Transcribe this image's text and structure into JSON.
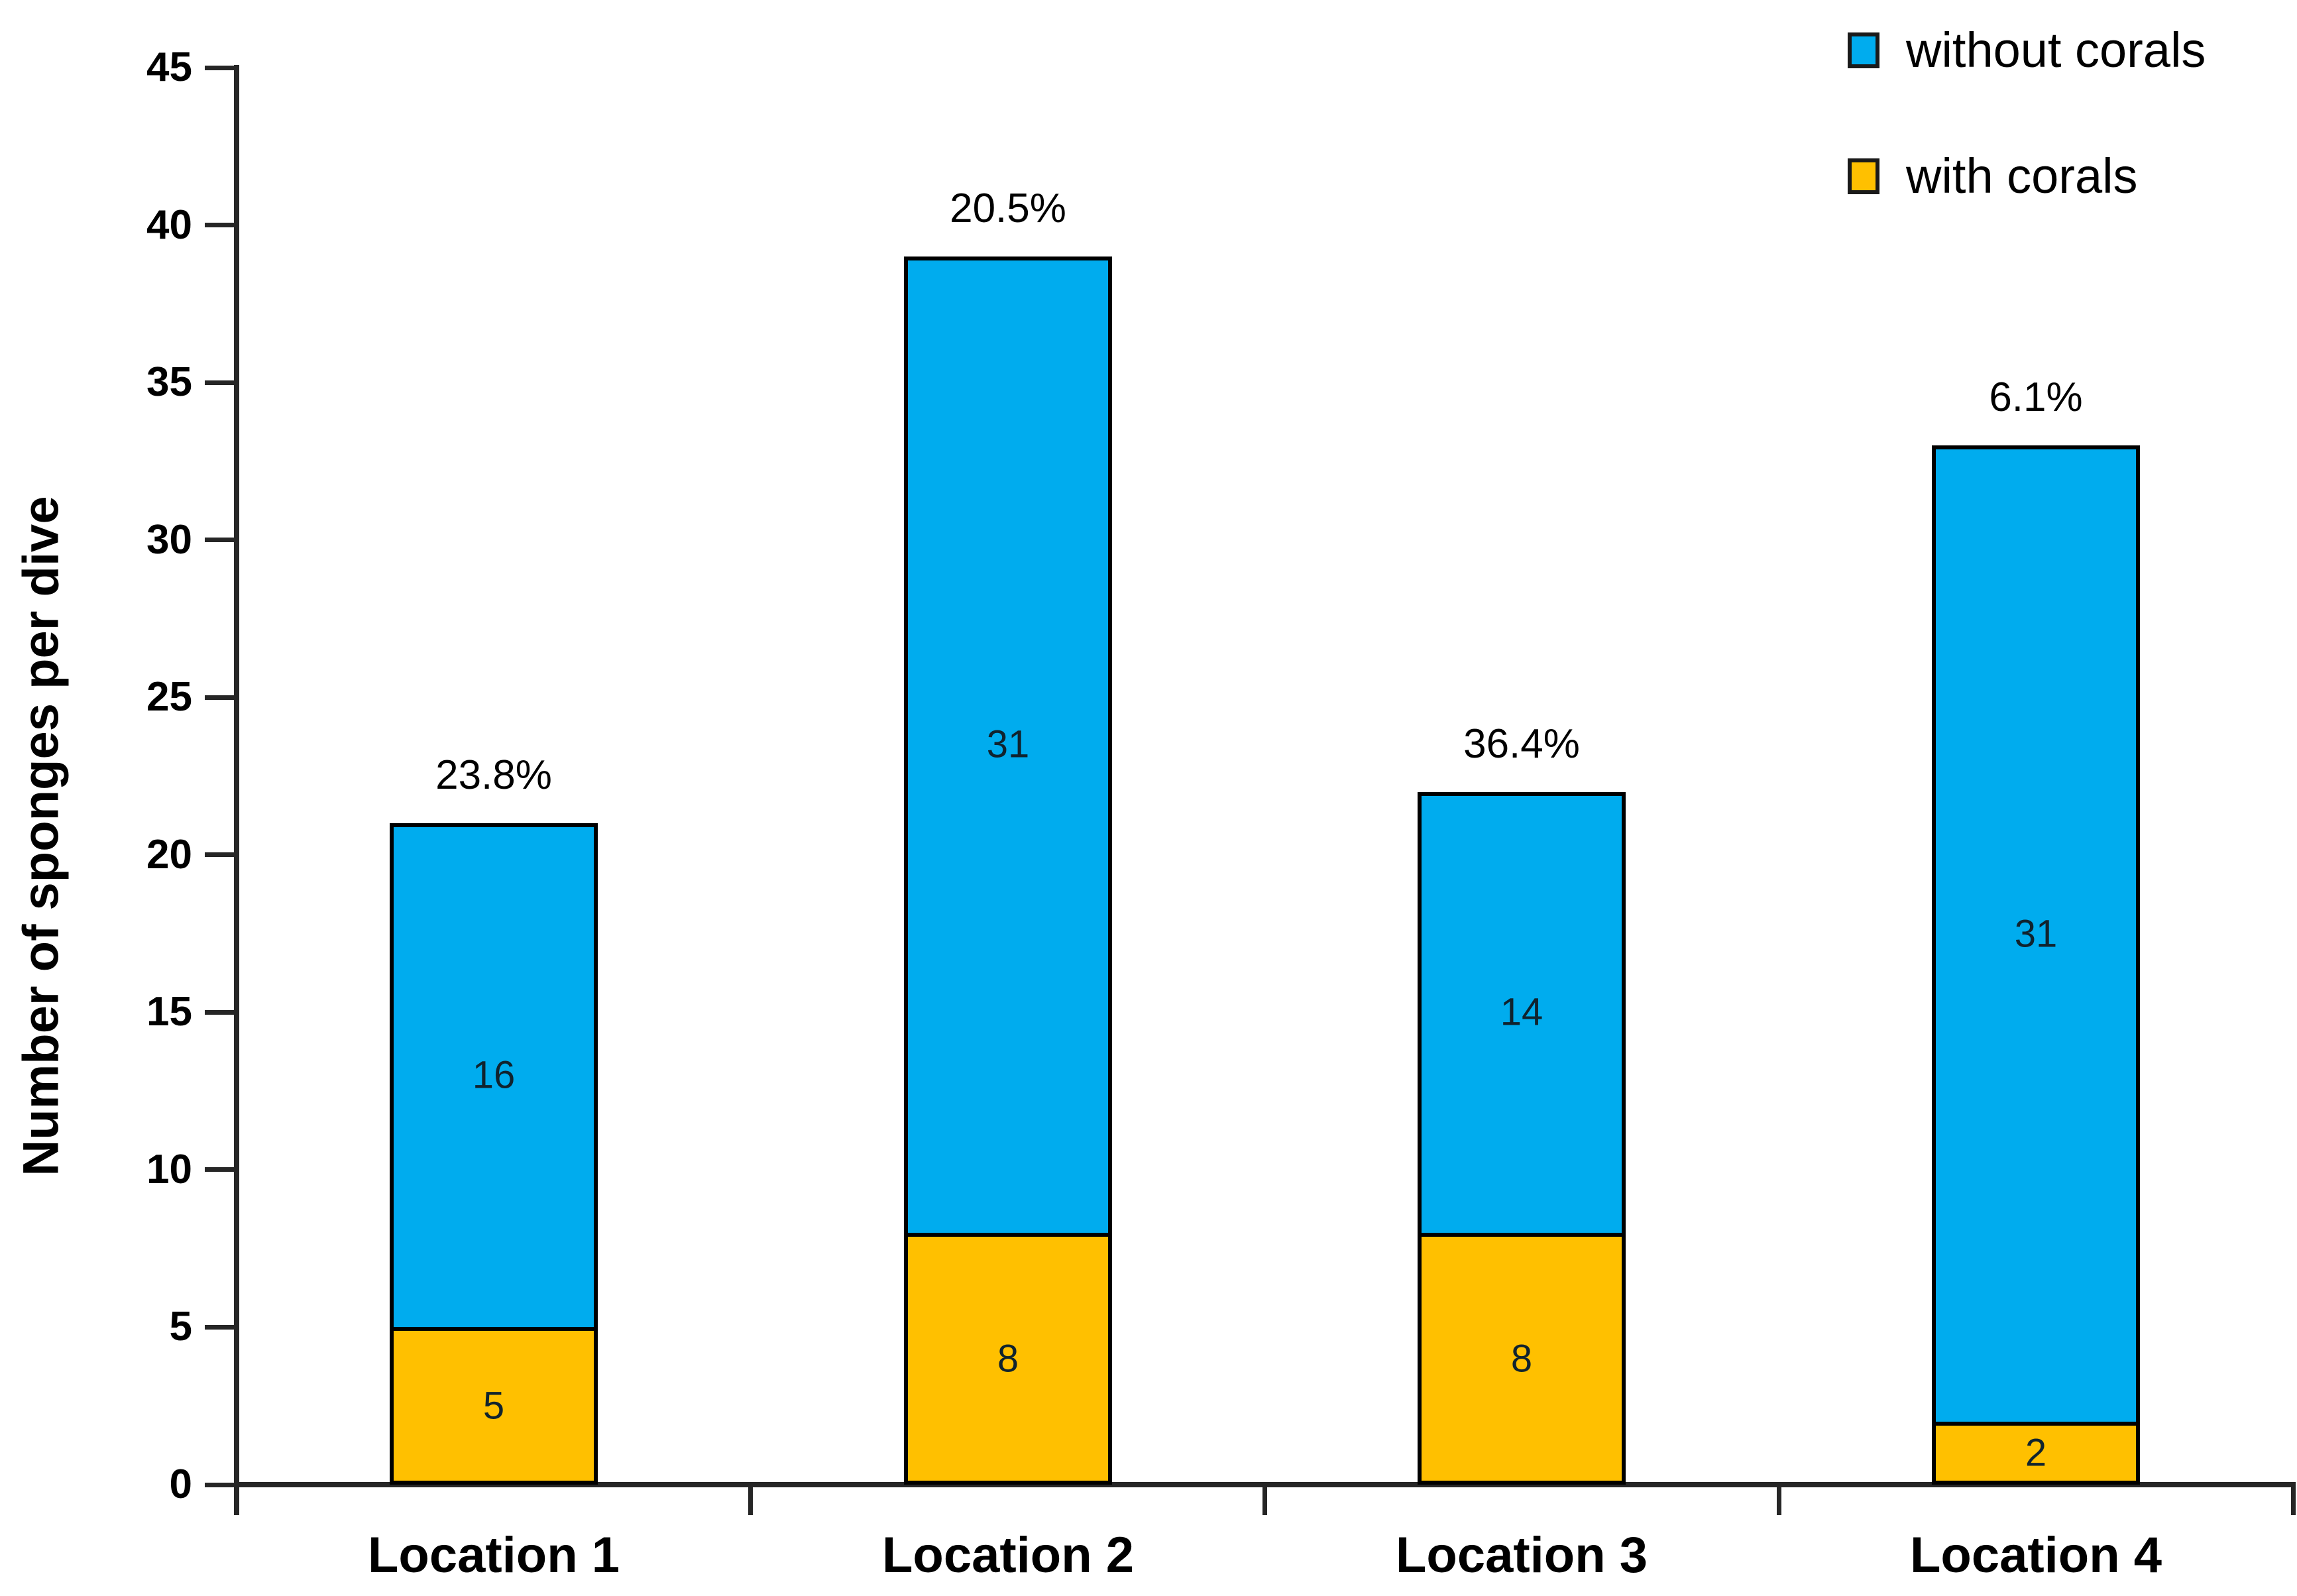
{
  "figure": {
    "background": "#ffffff"
  },
  "legend": {
    "position": "top-right",
    "items": [
      {
        "label": "without corals",
        "color": "#00ACEE"
      },
      {
        "label": "with corals",
        "color": "#FFC000"
      }
    ]
  },
  "chart_data": {
    "type": "bar",
    "stacked": true,
    "title": "",
    "xlabel": "",
    "ylabel": "Number of sponges per dive",
    "categories": [
      "Location 1",
      "Location 2",
      "Location 3",
      "Location 4"
    ],
    "series": [
      {
        "name": "with corals",
        "color": "#FFC000",
        "values": [
          5,
          8,
          8,
          2
        ]
      },
      {
        "name": "without corals",
        "color": "#00ACEE",
        "values": [
          16,
          31,
          14,
          31
        ]
      }
    ],
    "bar_totals": [
      21,
      39,
      22,
      33
    ],
    "bar_top_labels": [
      "23.8%",
      "20.5%",
      "36.4%",
      "6.1%"
    ],
    "ylim": [
      0,
      45
    ],
    "ytick_step": 5,
    "yticks": [
      0,
      5,
      10,
      15,
      20,
      25,
      30,
      35,
      40,
      45
    ],
    "grid": false,
    "legend_position": "top-right",
    "axis_color": "#262626",
    "bar_border_color": "#000000",
    "value_label_color": "#10232e",
    "pct_label_color": "#000000"
  }
}
